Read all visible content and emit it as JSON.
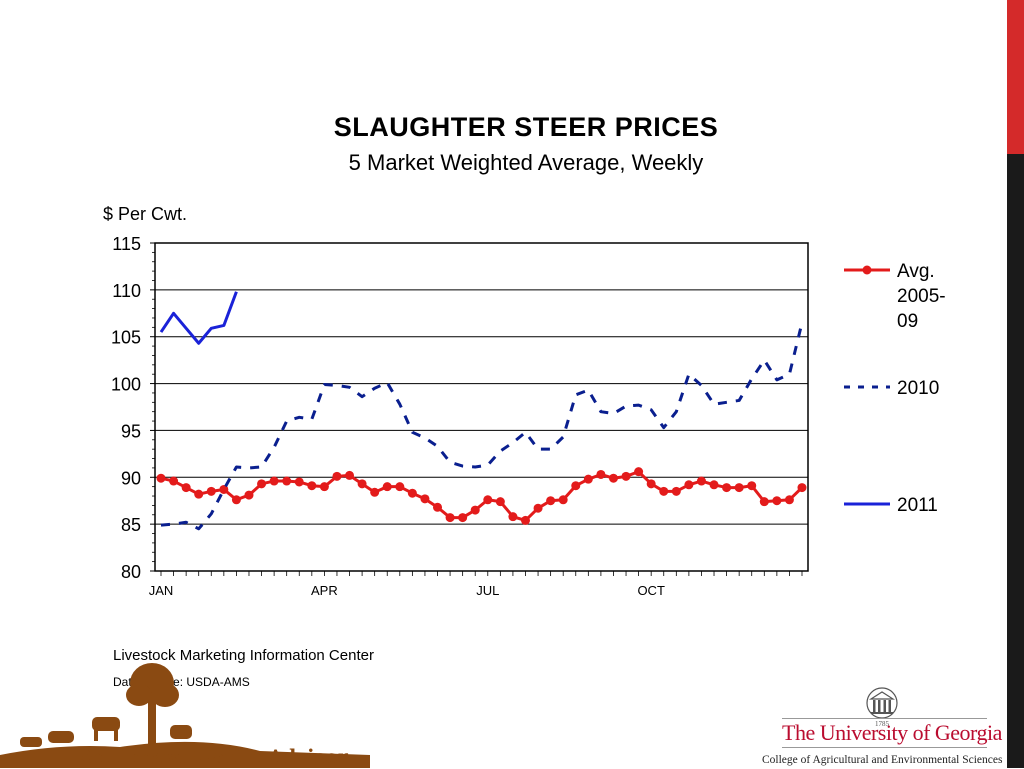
{
  "title": "SLAUGHTER  STEER  PRICES",
  "subtitle": "5 Market Weighted Average, Weekly",
  "unit_label": "$ Per Cwt.",
  "source": "Livestock Marketing Information Center",
  "data_source": "Data Source:  USDA-AMS",
  "logo_left_text": "Southeast Cattle Advisor",
  "logo_left_parts": {
    "a": "Southeast ",
    "b": "C",
    "c": "attle ",
    "d": "Advisor"
  },
  "uga_name": "The University of Georgia",
  "uga_college": "College of Agricultural and Environmental Sciences",
  "uga_year": "1785",
  "colors": {
    "avg": "#e31b1b",
    "y2010": "#0a1f8f",
    "y2011": "#1a22d8",
    "side_red": "#d42a2a",
    "side_dark": "#1a1a1a"
  },
  "chart_data": {
    "type": "line",
    "title": "SLAUGHTER  STEER  PRICES",
    "subtitle": "5 Market Weighted Average, Weekly",
    "ylabel": "$ Per Cwt.",
    "xlabel": "",
    "ylim": [
      80,
      115
    ],
    "yticks": [
      80,
      85,
      90,
      95,
      100,
      105,
      110,
      115
    ],
    "x_weeks": 52,
    "xtick_labels": [
      {
        "week": 1,
        "label": "JAN"
      },
      {
        "week": 14,
        "label": "APR"
      },
      {
        "week": 27,
        "label": "JUL"
      },
      {
        "week": 40,
        "label": "OCT"
      }
    ],
    "grid": true,
    "legend_position": "right",
    "series": [
      {
        "name": "Avg. 2005-09",
        "legend_lines": [
          "Avg.",
          "2005-",
          "09"
        ],
        "style": "solid-markers",
        "color": "#e31b1b",
        "values": [
          89.9,
          89.6,
          88.9,
          88.2,
          88.5,
          88.7,
          87.6,
          88.1,
          89.3,
          89.6,
          89.6,
          89.5,
          89.1,
          89.0,
          90.1,
          90.2,
          89.3,
          88.4,
          89.0,
          89.0,
          88.3,
          87.7,
          86.8,
          85.7,
          85.7,
          86.5,
          87.6,
          87.4,
          85.8,
          85.4,
          86.7,
          87.5,
          87.6,
          89.1,
          89.8,
          90.3,
          89.9,
          90.1,
          90.6,
          89.3,
          88.5,
          88.5,
          89.2,
          89.6,
          89.2,
          88.9,
          88.9,
          89.1,
          87.4,
          87.5,
          87.6,
          88.9
        ]
      },
      {
        "name": "2010",
        "legend_lines": [
          "2010"
        ],
        "style": "dashed",
        "color": "#0a1f8f",
        "values": [
          84.9,
          85.0,
          85.2,
          84.5,
          86.1,
          88.7,
          91.1,
          91.0,
          91.1,
          93.2,
          96.0,
          96.4,
          96.2,
          99.9,
          99.8,
          99.6,
          98.6,
          99.5,
          100.1,
          97.8,
          94.8,
          94.2,
          93.3,
          91.6,
          91.2,
          91.1,
          91.3,
          92.8,
          93.7,
          94.8,
          93.0,
          93.0,
          94.3,
          98.8,
          99.3,
          97.0,
          96.8,
          97.6,
          97.7,
          97.2,
          95.3,
          97.0,
          101.0,
          99.8,
          97.8,
          98.0,
          98.2,
          100.5,
          102.5,
          100.4,
          101.0,
          106.5
        ]
      },
      {
        "name": "2011",
        "legend_lines": [
          "2011"
        ],
        "style": "solid",
        "color": "#1a22d8",
        "values": [
          105.5,
          107.5,
          105.9,
          104.3,
          105.9,
          106.2,
          109.8
        ]
      }
    ]
  }
}
